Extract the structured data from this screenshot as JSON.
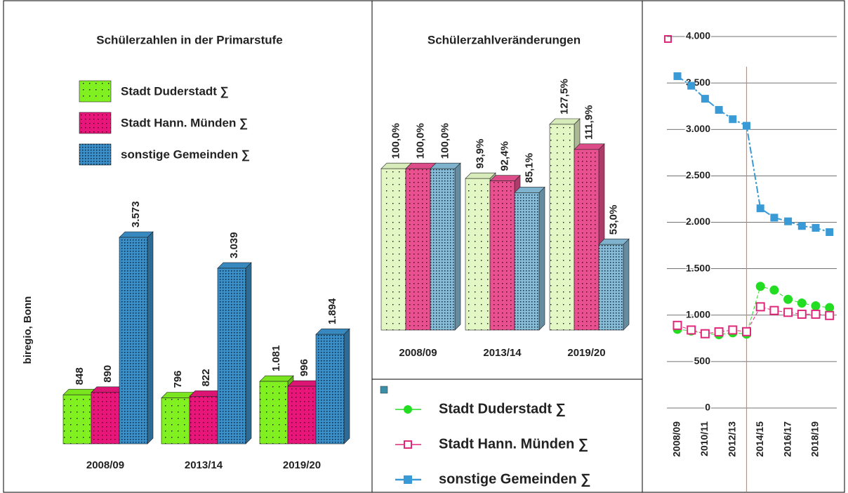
{
  "chart_data": [
    {
      "type": "bar",
      "title": "Schülerzahlen in der Primarstufe",
      "source": "biregio, Bonn",
      "categories": [
        "2008/09",
        "2013/14",
        "2019/20"
      ],
      "series": [
        {
          "name": "Stadt Duderstadt ∑",
          "color": "#80f020",
          "values": [
            848,
            796,
            1081
          ],
          "value_labels": [
            "848",
            "796",
            "1.081"
          ]
        },
        {
          "name": "Stadt Hann. Münden ∑",
          "color": "#e8157a",
          "values": [
            890,
            822,
            996
          ],
          "value_labels": [
            "890",
            "822",
            "996"
          ]
        },
        {
          "name": "sonstige Gemeinden ∑",
          "color": "#3a8fc8",
          "values": [
            3573,
            3039,
            1894
          ],
          "value_labels": [
            "3.573",
            "3.039",
            "1.894"
          ]
        }
      ]
    },
    {
      "type": "bar",
      "title": "Schülerzahlveränderungen",
      "categories": [
        "2008/09",
        "2013/14",
        "2019/20"
      ],
      "series": [
        {
          "name": "Stadt Duderstadt ∑",
          "color": "#e2f7c4",
          "values": [
            100.0,
            93.9,
            127.5
          ],
          "value_labels": [
            "100,0%",
            "93,9%",
            "127,5%"
          ]
        },
        {
          "name": "Stadt Hann. Münden ∑",
          "color": "#e8508f",
          "values": [
            100.0,
            92.4,
            111.9
          ],
          "value_labels": [
            "100,0%",
            "92,4%",
            "111,9%"
          ]
        },
        {
          "name": "sonstige Gemeinden ∑",
          "color": "#86bcd8",
          "values": [
            100.0,
            85.1,
            53.0
          ],
          "value_labels": [
            "100,0%",
            "85,1%",
            "53,0%"
          ]
        }
      ]
    },
    {
      "type": "line",
      "categories": [
        "2008/09",
        null,
        "2010/11",
        null,
        "2012/13",
        null,
        "2014/15",
        null,
        "2016/17",
        null,
        "2018/19",
        null
      ],
      "ylim": [
        0,
        4000
      ],
      "yticks": [
        0,
        500,
        {
          "value": 1000,
          "label": "1.000"
        },
        {
          "value": 1500,
          "label": "1.500"
        },
        {
          "value": 2000,
          "label": "2.000"
        },
        {
          "value": 2500,
          "label": "2.500"
        },
        {
          "value": 3000,
          "label": "3.000"
        },
        {
          "value": 3500,
          "label": "3.500"
        },
        {
          "value": 4000,
          "label": "4.000"
        }
      ],
      "grid": true,
      "series": [
        {
          "name": "Stadt Duderstadt ∑",
          "color": "#22dd22",
          "marker": "circle",
          "values": [
            848,
            830,
            800,
            790,
            810,
            796,
            1310,
            1270,
            1170,
            1130,
            1100,
            1081
          ]
        },
        {
          "name": "Stadt Hann. Münden ∑",
          "color": "#e0287a",
          "marker": "open-square",
          "values": [
            890,
            840,
            800,
            820,
            840,
            822,
            1090,
            1050,
            1030,
            1010,
            1010,
            996
          ]
        },
        {
          "name": "sonstige Gemeinden ∑",
          "color": "#3a9ad6",
          "marker": "square",
          "values": [
            3573,
            3470,
            3330,
            3210,
            3110,
            3039,
            2150,
            2050,
            2010,
            1960,
            1940,
            1894
          ]
        }
      ]
    }
  ]
}
